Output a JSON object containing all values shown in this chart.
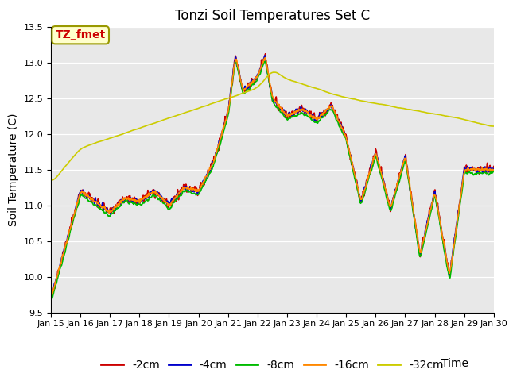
{
  "title": "Tonzi Soil Temperatures Set C",
  "xlabel_right": "Time",
  "ylabel": "Soil Temperature (C)",
  "ylim": [
    9.5,
    13.5
  ],
  "xlim": [
    0,
    15
  ],
  "xtick_labels": [
    "Jan 15",
    "Jan 16",
    "Jan 17",
    "Jan 18",
    "Jan 19",
    "Jan 20",
    "Jan 21",
    "Jan 22",
    "Jan 23",
    "Jan 24",
    "Jan 25",
    "Jan 26",
    "Jan 27",
    "Jan 28",
    "Jan 29",
    "Jan 30"
  ],
  "series_colors": [
    "#cc0000",
    "#0000cc",
    "#00bb00",
    "#ff8800",
    "#cccc00"
  ],
  "series_labels": [
    "-2cm",
    "-4cm",
    "-8cm",
    "-16cm",
    "-32cm"
  ],
  "bg_color": "#e8e8e8",
  "plot_bg": "#e8e8e8",
  "annotation_text": "TZ_fmet",
  "annotation_bg": "#ffffcc",
  "annotation_border": "#999900",
  "annotation_fg": "#cc0000",
  "title_fontsize": 12,
  "axis_fontsize": 10,
  "tick_fontsize": 8,
  "legend_fontsize": 10,
  "grid_color": "#ffffff",
  "lw": 1.2
}
